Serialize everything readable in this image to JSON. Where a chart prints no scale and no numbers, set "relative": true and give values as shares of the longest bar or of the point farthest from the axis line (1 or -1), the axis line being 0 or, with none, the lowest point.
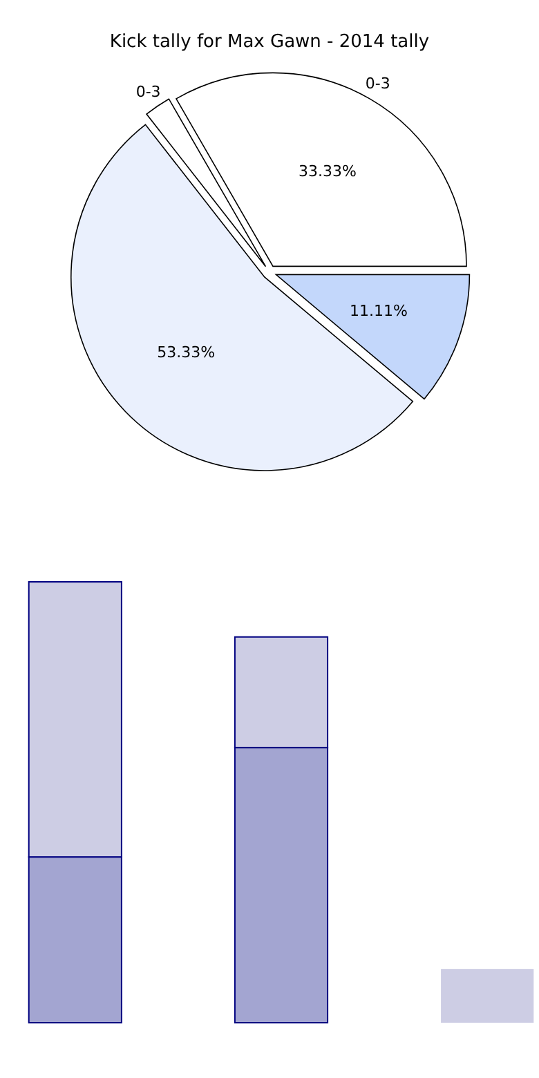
{
  "chart_data": [
    {
      "type": "pie",
      "title": "Kick tally for Max Gawn - 2014 tally",
      "categories": [
        "0-3",
        "0-3",
        null,
        null
      ],
      "values": [
        33.33,
        2.22,
        53.33,
        11.11
      ],
      "colors": [
        "#ffffff",
        "#ffffff",
        "#eaf0fd",
        "#c3d7fb"
      ],
      "value_labels": [
        "33.33%",
        null,
        "53.33%",
        "11.11%"
      ]
    },
    {
      "type": "bar",
      "stacked": true,
      "relative": true,
      "categories": [
        null,
        null,
        null
      ],
      "series": [
        {
          "color": "#a3a5d1",
          "values": [
            0.376,
            0.624,
            0
          ]
        },
        {
          "color": "#cdcde4",
          "values": [
            0.624,
            0.251,
            0.122
          ]
        }
      ]
    }
  ]
}
